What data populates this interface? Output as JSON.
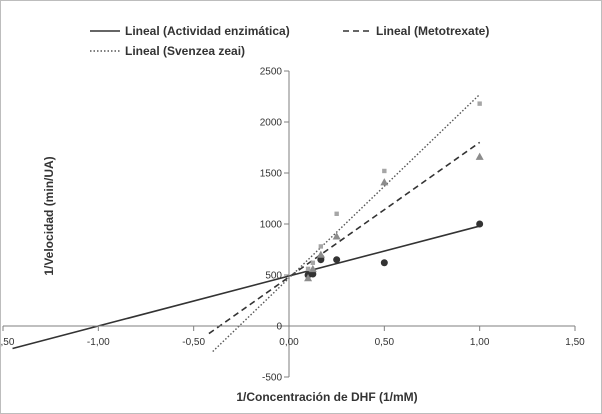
{
  "chart_data": {
    "type": "scatter",
    "title": "",
    "xlabel": "1/Concentración de DHF (1/mM)",
    "ylabel": "1/Velocidad (min/UA)",
    "xlim": [
      -1.5,
      1.5
    ],
    "ylim": [
      -500,
      2500
    ],
    "x_ticks": [
      -1.5,
      -1.0,
      -0.5,
      0.0,
      0.5,
      1.0,
      1.5
    ],
    "x_tick_labels": [
      "-1,50",
      "-1,00",
      "-0,50",
      "0,00",
      "0,50",
      "1,00",
      "1,50"
    ],
    "y_ticks": [
      -500,
      0,
      500,
      1000,
      1500,
      2000,
      2500
    ],
    "y_tick_labels": [
      "-500",
      "0",
      "500",
      "1000",
      "1500",
      "2000",
      "2500"
    ],
    "grid": false,
    "legend_position": "top",
    "series": [
      {
        "marker": "circle",
        "color": "#333333",
        "points": [
          [
            0.1,
            500
          ],
          [
            0.125,
            510
          ],
          [
            0.167,
            650
          ],
          [
            0.167,
            670
          ],
          [
            0.25,
            650
          ],
          [
            0.5,
            620
          ],
          [
            1.0,
            1000
          ]
        ]
      },
      {
        "marker": "triangle",
        "color": "#8c8c8c",
        "points": [
          [
            0.1,
            470
          ],
          [
            0.125,
            560
          ],
          [
            0.167,
            700
          ],
          [
            0.25,
            880
          ],
          [
            0.5,
            1410
          ],
          [
            1.0,
            1660
          ]
        ]
      },
      {
        "marker": "square",
        "color": "#a6a6a6",
        "points": [
          [
            0.1,
            560
          ],
          [
            0.125,
            620
          ],
          [
            0.167,
            780
          ],
          [
            0.25,
            1100
          ],
          [
            0.5,
            1520
          ],
          [
            1.0,
            2180
          ]
        ]
      }
    ],
    "trendlines": [
      {
        "name": "Lineal (Actividad enzimática)",
        "style": "solid",
        "color": "#333333",
        "x_range": [
          -1.45,
          1.0
        ],
        "slope": 490,
        "intercept": 490
      },
      {
        "name": "Lineal (Metotrexate)",
        "style": "dashed",
        "color": "#333333",
        "x_range": [
          -0.42,
          1.0
        ],
        "slope": 1320,
        "intercept": 480
      },
      {
        "name": "Lineal (Svenzea zeai)",
        "style": "dotted",
        "color": "#555555",
        "x_range": [
          -0.4,
          1.0
        ],
        "slope": 1800,
        "intercept": 470
      }
    ]
  }
}
